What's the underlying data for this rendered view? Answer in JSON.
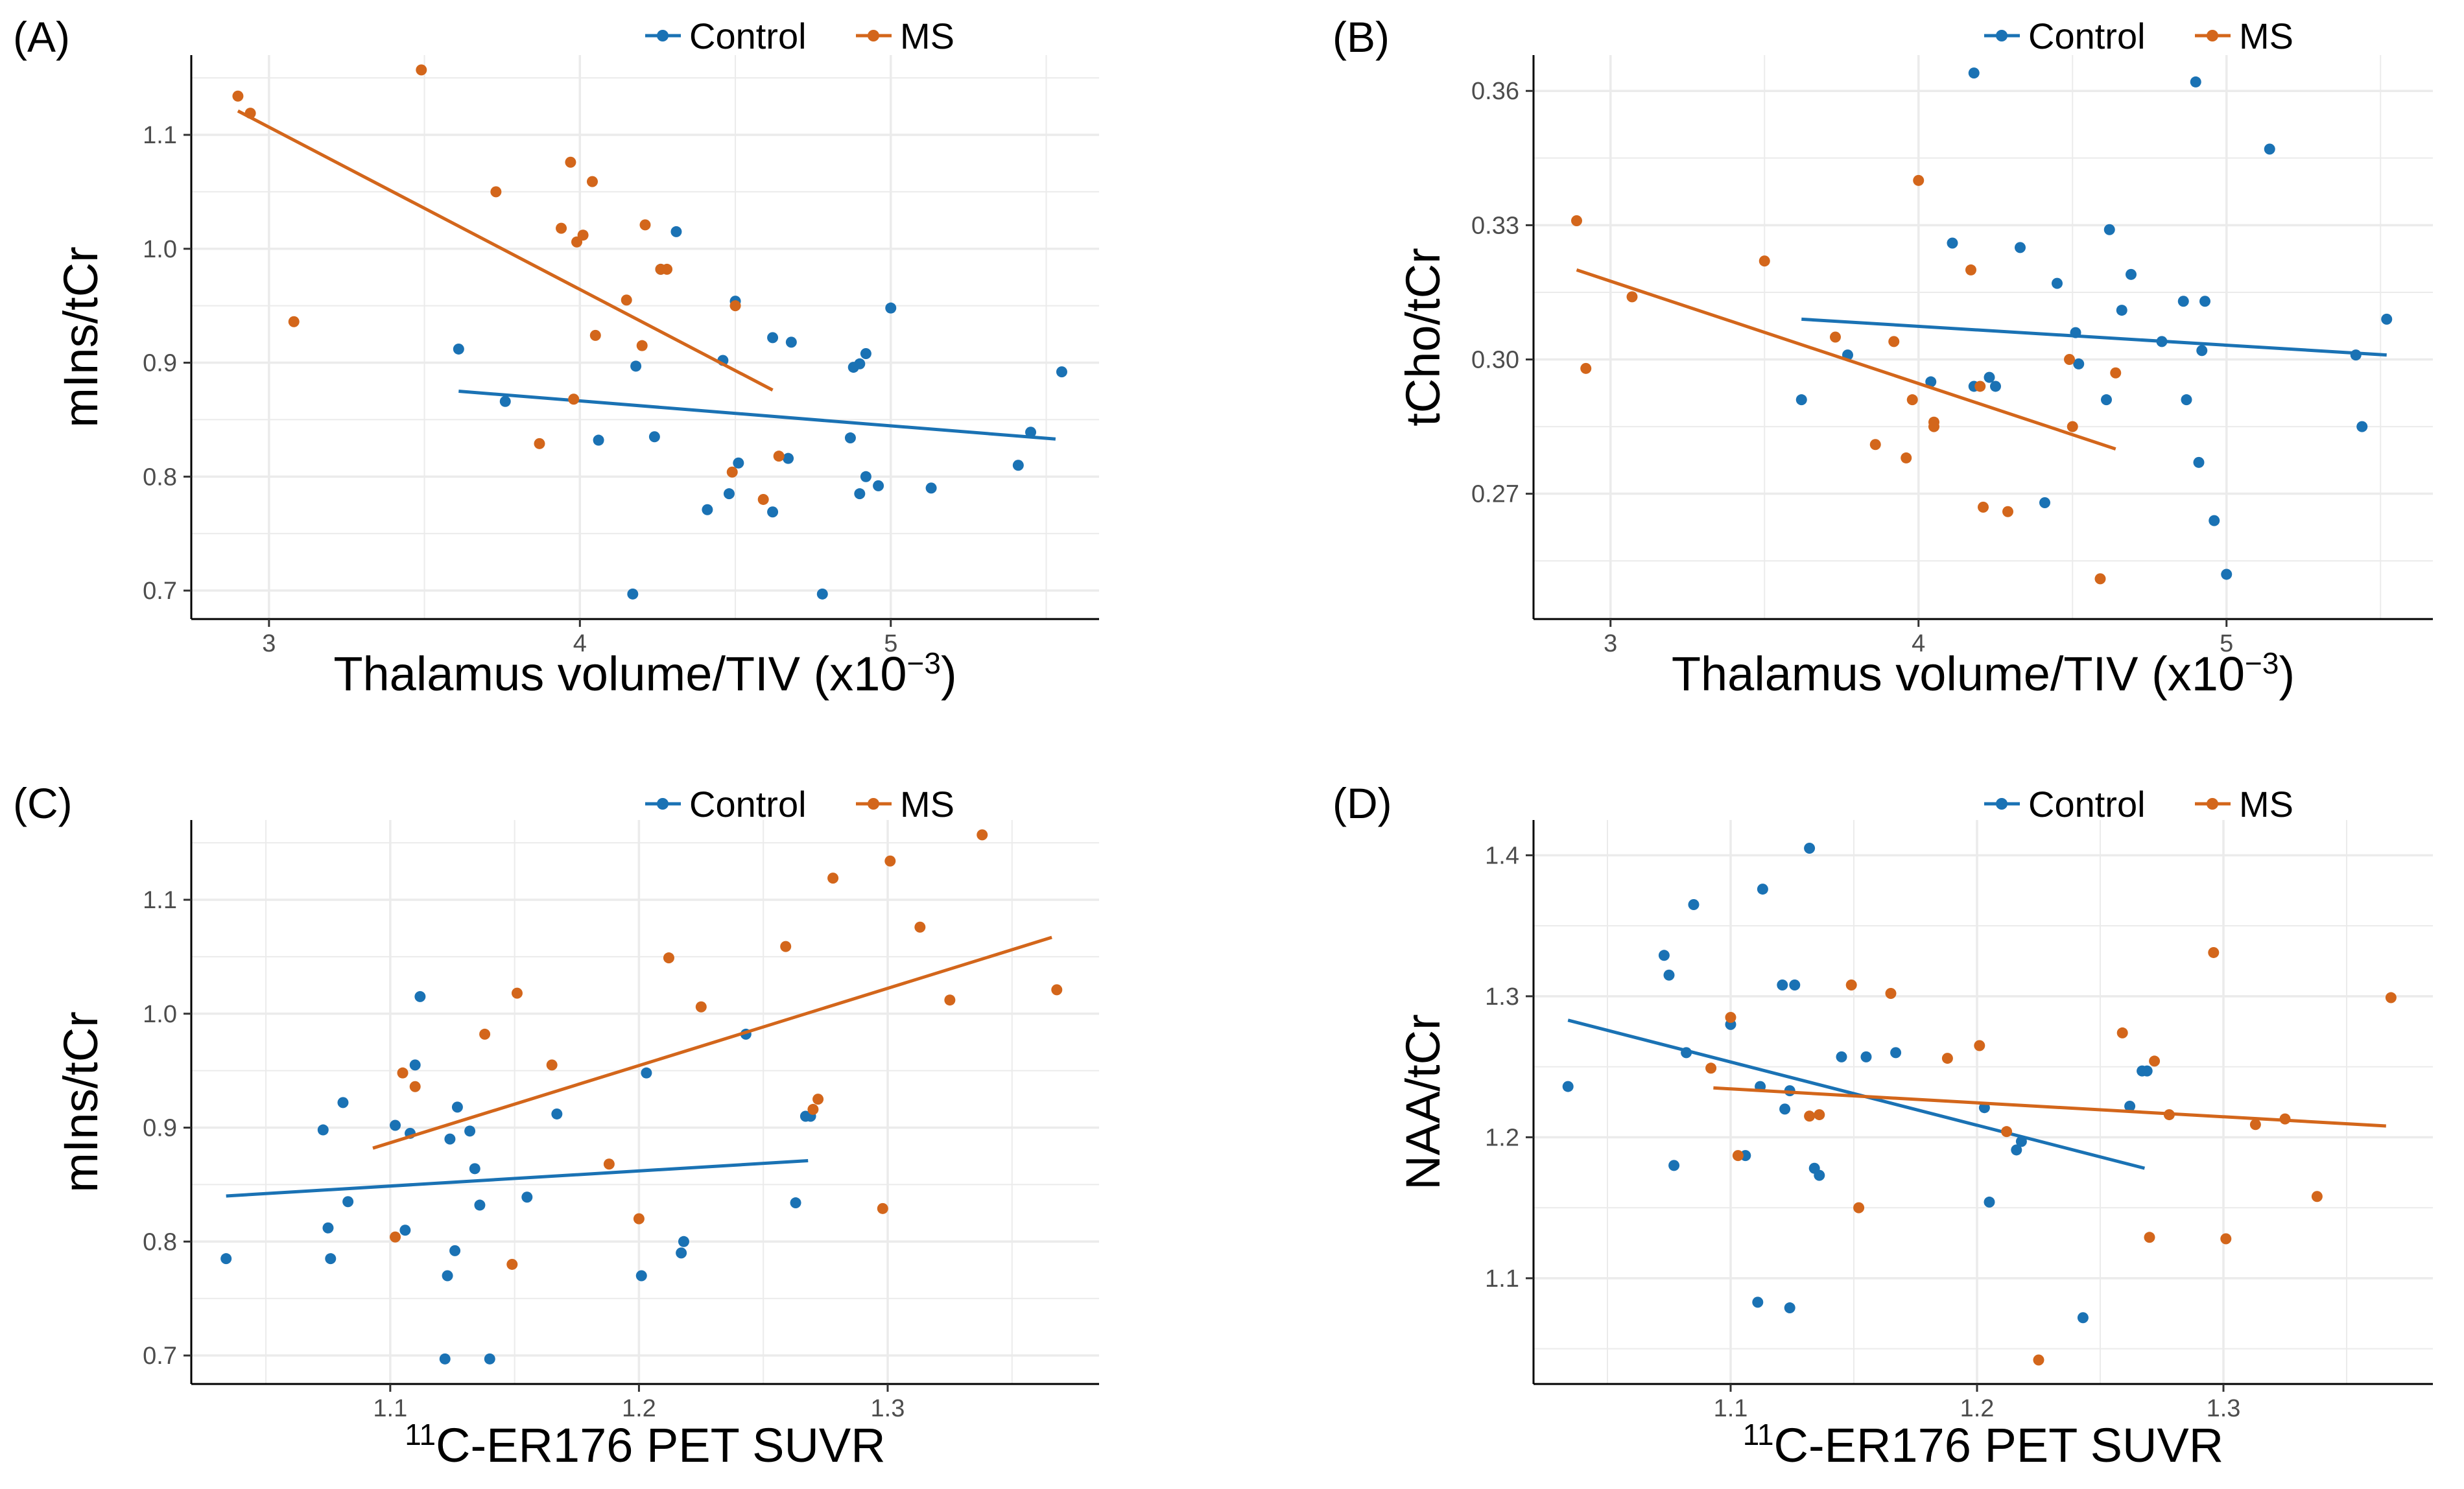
{
  "colors": {
    "control": "#1A72B4",
    "ms": "#D3661B",
    "grid": "#EBEBEB",
    "axis": "#000000"
  },
  "chart_data": [
    {
      "panel_label": "(A)",
      "type": "scatter",
      "legend": [
        "Control",
        "MS"
      ],
      "xlabel": "Thalamus volume/TIV (x10",
      "xlabel_sup": "−3",
      "xlabel_close": ")",
      "ylabel": "mIns/tCr",
      "xlim": [
        2.75,
        5.67
      ],
      "ylim": [
        0.675,
        1.17
      ],
      "xticks": [
        "3",
        "4",
        "5"
      ],
      "xtick_values": [
        3,
        4,
        5
      ],
      "yticks": [
        "0.7",
        "0.8",
        "0.9",
        "1.0",
        "1.1"
      ],
      "ytick_values": [
        0.7,
        0.8,
        0.9,
        1.0,
        1.1
      ],
      "series": [
        {
          "name": "Control",
          "points": [
            [
              3.61,
              0.912
            ],
            [
              3.76,
              0.866
            ],
            [
              4.06,
              0.832
            ],
            [
              4.17,
              0.697
            ],
            [
              4.18,
              0.897
            ],
            [
              4.24,
              0.835
            ],
            [
              4.26,
              0.982
            ],
            [
              4.31,
              1.015
            ],
            [
              4.41,
              0.771
            ],
            [
              4.46,
              0.902
            ],
            [
              4.48,
              0.785
            ],
            [
              4.5,
              0.954
            ],
            [
              4.51,
              0.812
            ],
            [
              4.62,
              0.922
            ],
            [
              4.62,
              0.769
            ],
            [
              4.67,
              0.816
            ],
            [
              4.68,
              0.918
            ],
            [
              4.78,
              0.697
            ],
            [
              4.87,
              0.834
            ],
            [
              4.88,
              0.896
            ],
            [
              4.9,
              0.785
            ],
            [
              4.9,
              0.899
            ],
            [
              4.92,
              0.908
            ],
            [
              4.92,
              0.8
            ],
            [
              4.96,
              0.792
            ],
            [
              5.0,
              0.948
            ],
            [
              5.13,
              0.79
            ],
            [
              5.41,
              0.81
            ],
            [
              5.45,
              0.839
            ],
            [
              5.55,
              0.892
            ]
          ],
          "fit": [
            [
              3.61,
              0.875
            ],
            [
              5.53,
              0.833
            ]
          ]
        },
        {
          "name": "MS",
          "points": [
            [
              2.9,
              1.134
            ],
            [
              2.94,
              1.119
            ],
            [
              3.08,
              0.936
            ],
            [
              3.49,
              1.157
            ],
            [
              3.73,
              1.05
            ],
            [
              3.87,
              0.829
            ],
            [
              3.94,
              1.018
            ],
            [
              3.97,
              1.076
            ],
            [
              3.98,
              0.868
            ],
            [
              3.99,
              1.006
            ],
            [
              4.01,
              1.012
            ],
            [
              4.04,
              1.059
            ],
            [
              4.05,
              0.924
            ],
            [
              4.15,
              0.955
            ],
            [
              4.2,
              0.915
            ],
            [
              4.21,
              1.021
            ],
            [
              4.26,
              0.982
            ],
            [
              4.28,
              0.982
            ],
            [
              4.49,
              0.804
            ],
            [
              4.5,
              0.95
            ],
            [
              4.59,
              0.78
            ],
            [
              4.64,
              0.818
            ]
          ],
          "fit": [
            [
              2.9,
              1.121
            ],
            [
              4.62,
              0.876
            ]
          ]
        }
      ]
    },
    {
      "panel_label": "(B)",
      "type": "scatter",
      "legend": [
        "Control",
        "MS"
      ],
      "xlabel": "Thalamus volume/TIV (x10",
      "xlabel_sup": "−3",
      "xlabel_close": ")",
      "ylabel": "tCho/tCr",
      "xlim": [
        2.75,
        5.67
      ],
      "ylim": [
        0.242,
        0.368
      ],
      "xticks": [
        "3",
        "4",
        "5"
      ],
      "xtick_values": [
        3,
        4,
        5
      ],
      "yticks": [
        "0.27",
        "0.30",
        "0.33",
        "0.36"
      ],
      "ytick_values": [
        0.27,
        0.3,
        0.33,
        0.36
      ],
      "series": [
        {
          "name": "Control",
          "points": [
            [
              3.62,
              0.291
            ],
            [
              3.77,
              0.301
            ],
            [
              4.04,
              0.295
            ],
            [
              4.11,
              0.326
            ],
            [
              4.18,
              0.294
            ],
            [
              4.18,
              0.364
            ],
            [
              4.23,
              0.296
            ],
            [
              4.25,
              0.294
            ],
            [
              4.33,
              0.325
            ],
            [
              4.41,
              0.268
            ],
            [
              4.45,
              0.317
            ],
            [
              4.51,
              0.306
            ],
            [
              4.52,
              0.299
            ],
            [
              4.61,
              0.291
            ],
            [
              4.62,
              0.329
            ],
            [
              4.66,
              0.311
            ],
            [
              4.69,
              0.319
            ],
            [
              4.79,
              0.304
            ],
            [
              4.86,
              0.313
            ],
            [
              4.87,
              0.291
            ],
            [
              4.9,
              0.362
            ],
            [
              4.91,
              0.277
            ],
            [
              4.92,
              0.302
            ],
            [
              4.93,
              0.313
            ],
            [
              4.96,
              0.264
            ],
            [
              5.0,
              0.252
            ],
            [
              5.14,
              0.347
            ],
            [
              5.42,
              0.301
            ],
            [
              5.44,
              0.285
            ],
            [
              5.52,
              0.309
            ]
          ],
          "fit": [
            [
              3.62,
              0.309
            ],
            [
              5.52,
              0.301
            ]
          ]
        },
        {
          "name": "MS",
          "points": [
            [
              2.89,
              0.331
            ],
            [
              2.92,
              0.298
            ],
            [
              3.07,
              0.314
            ],
            [
              3.5,
              0.322
            ],
            [
              3.73,
              0.305
            ],
            [
              3.86,
              0.281
            ],
            [
              3.92,
              0.304
            ],
            [
              3.96,
              0.278
            ],
            [
              3.98,
              0.291
            ],
            [
              4.0,
              0.34
            ],
            [
              4.05,
              0.286
            ],
            [
              4.05,
              0.285
            ],
            [
              4.17,
              0.32
            ],
            [
              4.2,
              0.294
            ],
            [
              4.21,
              0.267
            ],
            [
              4.29,
              0.266
            ],
            [
              4.49,
              0.3
            ],
            [
              4.5,
              0.285
            ],
            [
              4.59,
              0.251
            ],
            [
              4.64,
              0.297
            ]
          ],
          "fit": [
            [
              2.89,
              0.32
            ],
            [
              4.64,
              0.28
            ]
          ]
        }
      ]
    },
    {
      "panel_label": "(C)",
      "type": "scatter",
      "legend": [
        "Control",
        "MS"
      ],
      "xlabel_sup": "11",
      "xlabel": "C-ER176 PET SUVR",
      "ylabel": "mIns/tCr",
      "xlim": [
        1.02,
        1.385
      ],
      "ylim": [
        0.675,
        1.17
      ],
      "xticks": [
        "1.1",
        "1.2",
        "1.3"
      ],
      "xtick_values": [
        1.1,
        1.2,
        1.3
      ],
      "yticks": [
        "0.7",
        "0.8",
        "0.9",
        "1.0",
        "1.1"
      ],
      "ytick_values": [
        0.7,
        0.8,
        0.9,
        1.0,
        1.1
      ],
      "series": [
        {
          "name": "Control",
          "points": [
            [
              1.034,
              0.785
            ],
            [
              1.073,
              0.898
            ],
            [
              1.075,
              0.812
            ],
            [
              1.076,
              0.785
            ],
            [
              1.081,
              0.922
            ],
            [
              1.083,
              0.835
            ],
            [
              1.102,
              0.902
            ],
            [
              1.106,
              0.81
            ],
            [
              1.108,
              0.895
            ],
            [
              1.11,
              0.955
            ],
            [
              1.112,
              1.015
            ],
            [
              1.122,
              0.697
            ],
            [
              1.123,
              0.77
            ],
            [
              1.124,
              0.89
            ],
            [
              1.126,
              0.792
            ],
            [
              1.127,
              0.918
            ],
            [
              1.132,
              0.897
            ],
            [
              1.134,
              0.864
            ],
            [
              1.136,
              0.832
            ],
            [
              1.14,
              0.697
            ],
            [
              1.155,
              0.839
            ],
            [
              1.167,
              0.912
            ],
            [
              1.201,
              0.77
            ],
            [
              1.203,
              0.948
            ],
            [
              1.217,
              0.79
            ],
            [
              1.218,
              0.8
            ],
            [
              1.243,
              0.982
            ],
            [
              1.263,
              0.834
            ],
            [
              1.267,
              0.91
            ],
            [
              1.269,
              0.91
            ]
          ],
          "fit": [
            [
              1.034,
              0.84
            ],
            [
              1.268,
              0.871
            ]
          ]
        },
        {
          "name": "MS",
          "points": [
            [
              1.102,
              0.804
            ],
            [
              1.105,
              0.948
            ],
            [
              1.11,
              0.936
            ],
            [
              1.138,
              0.982
            ],
            [
              1.149,
              0.78
            ],
            [
              1.151,
              1.018
            ],
            [
              1.165,
              0.955
            ],
            [
              1.188,
              0.868
            ],
            [
              1.2,
              0.82
            ],
            [
              1.212,
              1.049
            ],
            [
              1.225,
              1.006
            ],
            [
              1.259,
              1.059
            ],
            [
              1.27,
              0.916
            ],
            [
              1.272,
              0.925
            ],
            [
              1.278,
              1.119
            ],
            [
              1.298,
              0.829
            ],
            [
              1.301,
              1.134
            ],
            [
              1.313,
              1.076
            ],
            [
              1.325,
              1.012
            ],
            [
              1.338,
              1.157
            ],
            [
              1.368,
              1.021
            ]
          ],
          "fit": [
            [
              1.093,
              0.882
            ],
            [
              1.366,
              1.067
            ]
          ]
        }
      ]
    },
    {
      "panel_label": "(D)",
      "type": "scatter",
      "legend": [
        "Control",
        "MS"
      ],
      "xlabel_sup": "11",
      "xlabel": "C-ER176 PET SUVR",
      "ylabel": "NAA/tCr",
      "xlim": [
        1.02,
        1.385
      ],
      "ylim": [
        1.025,
        1.425
      ],
      "xticks": [
        "1.1",
        "1.2",
        "1.3"
      ],
      "xtick_values": [
        1.1,
        1.2,
        1.3
      ],
      "yticks": [
        "1.1",
        "1.2",
        "1.3",
        "1.4"
      ],
      "ytick_values": [
        1.1,
        1.2,
        1.3,
        1.4
      ],
      "series": [
        {
          "name": "Control",
          "points": [
            [
              1.034,
              1.236
            ],
            [
              1.073,
              1.329
            ],
            [
              1.075,
              1.315
            ],
            [
              1.077,
              1.18
            ],
            [
              1.082,
              1.26
            ],
            [
              1.085,
              1.365
            ],
            [
              1.1,
              1.28
            ],
            [
              1.106,
              1.187
            ],
            [
              1.111,
              1.083
            ],
            [
              1.112,
              1.236
            ],
            [
              1.113,
              1.376
            ],
            [
              1.121,
              1.308
            ],
            [
              1.122,
              1.22
            ],
            [
              1.124,
              1.233
            ],
            [
              1.124,
              1.079
            ],
            [
              1.126,
              1.308
            ],
            [
              1.132,
              1.405
            ],
            [
              1.134,
              1.178
            ],
            [
              1.136,
              1.173
            ],
            [
              1.145,
              1.257
            ],
            [
              1.155,
              1.257
            ],
            [
              1.167,
              1.26
            ],
            [
              1.203,
              1.221
            ],
            [
              1.205,
              1.154
            ],
            [
              1.216,
              1.191
            ],
            [
              1.218,
              1.197
            ],
            [
              1.243,
              1.072
            ],
            [
              1.262,
              1.222
            ],
            [
              1.267,
              1.247
            ],
            [
              1.269,
              1.247
            ]
          ],
          "fit": [
            [
              1.034,
              1.283
            ],
            [
              1.268,
              1.178
            ]
          ]
        },
        {
          "name": "MS",
          "points": [
            [
              1.092,
              1.249
            ],
            [
              1.1,
              1.285
            ],
            [
              1.103,
              1.187
            ],
            [
              1.132,
              1.215
            ],
            [
              1.136,
              1.216
            ],
            [
              1.149,
              1.308
            ],
            [
              1.152,
              1.15
            ],
            [
              1.165,
              1.302
            ],
            [
              1.188,
              1.256
            ],
            [
              1.201,
              1.265
            ],
            [
              1.212,
              1.204
            ],
            [
              1.225,
              1.042
            ],
            [
              1.259,
              1.274
            ],
            [
              1.27,
              1.129
            ],
            [
              1.272,
              1.254
            ],
            [
              1.278,
              1.216
            ],
            [
              1.296,
              1.331
            ],
            [
              1.301,
              1.128
            ],
            [
              1.313,
              1.209
            ],
            [
              1.325,
              1.213
            ],
            [
              1.338,
              1.158
            ],
            [
              1.368,
              1.299
            ]
          ],
          "fit": [
            [
              1.093,
              1.235
            ],
            [
              1.366,
              1.208
            ]
          ]
        }
      ]
    }
  ]
}
